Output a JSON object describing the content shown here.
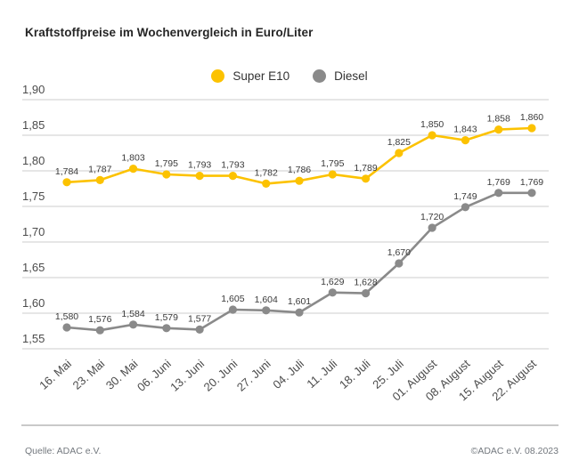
{
  "title": "Kraftstoffpreise im Wochenvergleich in Euro/Liter",
  "footer": {
    "source": "Quelle: ADAC e.V.",
    "copyright": "©ADAC e.V. 08.2023"
  },
  "colors": {
    "grid": "#d7d7d7",
    "axis_text": "#4b4b4b",
    "point_label": "#3a3a3a",
    "super_e10": "#fcc200",
    "diesel": "#8a8a8a"
  },
  "chart_data": {
    "type": "line",
    "title": "Kraftstoffpreise im Wochenvergleich in Euro/Liter",
    "unit": "Euro/Liter",
    "categories": [
      "16. Mai",
      "23. Mai",
      "30. Mai",
      "06. Juni",
      "13. Juni",
      "20. Juni",
      "27. Juni",
      "04. Juli",
      "11. Juli",
      "18. Juli",
      "25. Juli",
      "01. August",
      "08. August",
      "15. August",
      "22. August"
    ],
    "series": [
      {
        "name": "Super E10",
        "color": "#fcc200",
        "values": [
          1.784,
          1.787,
          1.803,
          1.795,
          1.793,
          1.793,
          1.782,
          1.786,
          1.795,
          1.789,
          1.825,
          1.85,
          1.843,
          1.858,
          1.86
        ]
      },
      {
        "name": "Diesel",
        "color": "#8a8a8a",
        "values": [
          1.58,
          1.576,
          1.584,
          1.579,
          1.577,
          1.605,
          1.604,
          1.601,
          1.629,
          1.628,
          1.67,
          1.72,
          1.749,
          1.769,
          1.769
        ]
      }
    ],
    "ylim": [
      1.55,
      1.9
    ],
    "ytick_step": 0.05,
    "decimal_separator": ",",
    "grid": true,
    "legend_position": "top-center",
    "xlabel": "",
    "ylabel": ""
  }
}
